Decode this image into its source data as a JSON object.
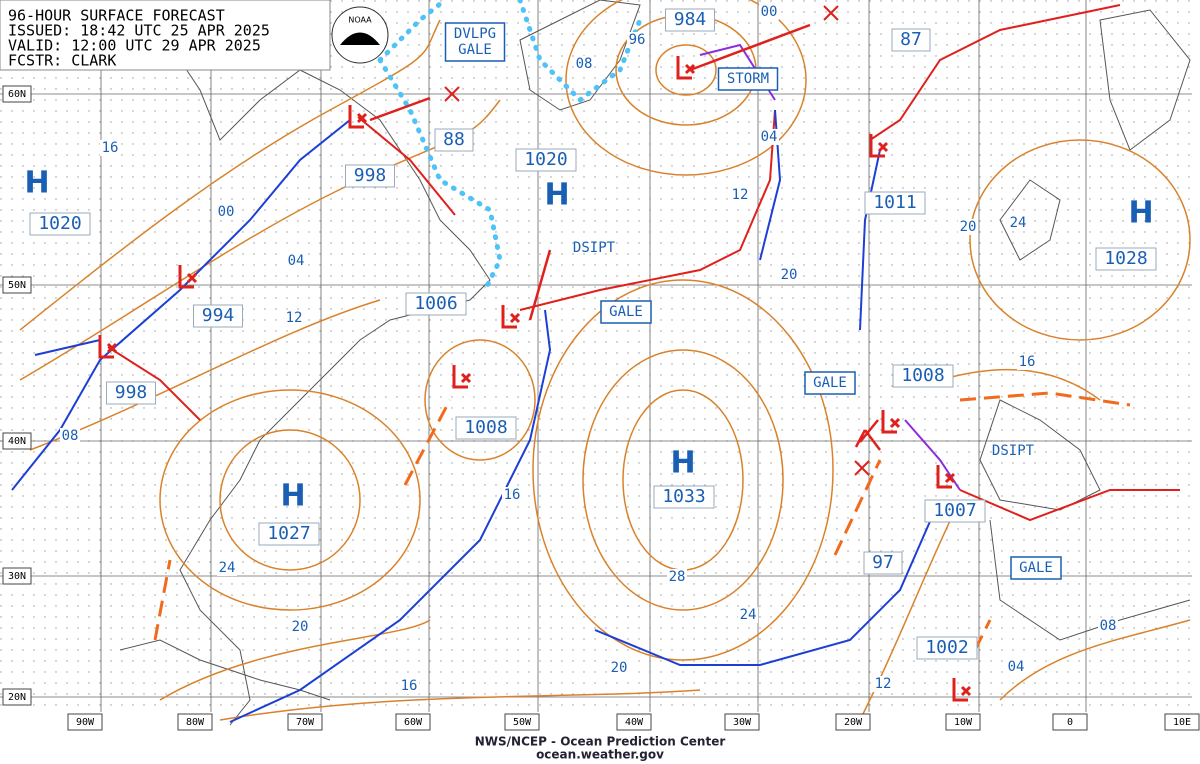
{
  "header": {
    "title": "96-HOUR SURFACE FORECAST",
    "issued": "ISSUED: 18:42 UTC 25 APR 2025",
    "valid": "VALID:  12:00 UTC 29 APR 2025",
    "forecaster": "FCSTR: CLARK"
  },
  "logo": "NOAA",
  "footer": {
    "agency": "NWS/NCEP - Ocean Prediction Center",
    "url": "ocean.weather.gov"
  },
  "longitude_labels": [
    "90W",
    "80W",
    "70W",
    "60W",
    "50W",
    "40W",
    "30W",
    "20W",
    "10W",
    "0",
    "10E"
  ],
  "latitude_labels": [
    "60N",
    "50N",
    "40N",
    "30N",
    "20N"
  ],
  "highs": [
    "H",
    "H",
    "H",
    "H",
    "H"
  ],
  "pressure_labels": [
    "1020",
    "998",
    "88",
    "1020",
    "994",
    "998",
    "1006",
    "1008",
    "1027",
    "1033",
    "984",
    "87",
    "1011",
    "1028",
    "1008",
    "1007",
    "97",
    "1002"
  ],
  "isobar_labels": [
    "16",
    "00",
    "04",
    "12",
    "08",
    "24",
    "20",
    "16",
    "16",
    "28",
    "24",
    "20",
    "12",
    "20",
    "04",
    "00",
    "96",
    "08",
    "12",
    "08",
    "04",
    "16",
    "20",
    "24"
  ],
  "warnings": [
    [
      "DVLPG",
      "GALE"
    ],
    [
      "STORM"
    ],
    [
      "GALE"
    ],
    [
      "GALE"
    ],
    [
      "GALE"
    ]
  ],
  "annotations": [
    "DSIPT",
    "DSIPT"
  ]
}
